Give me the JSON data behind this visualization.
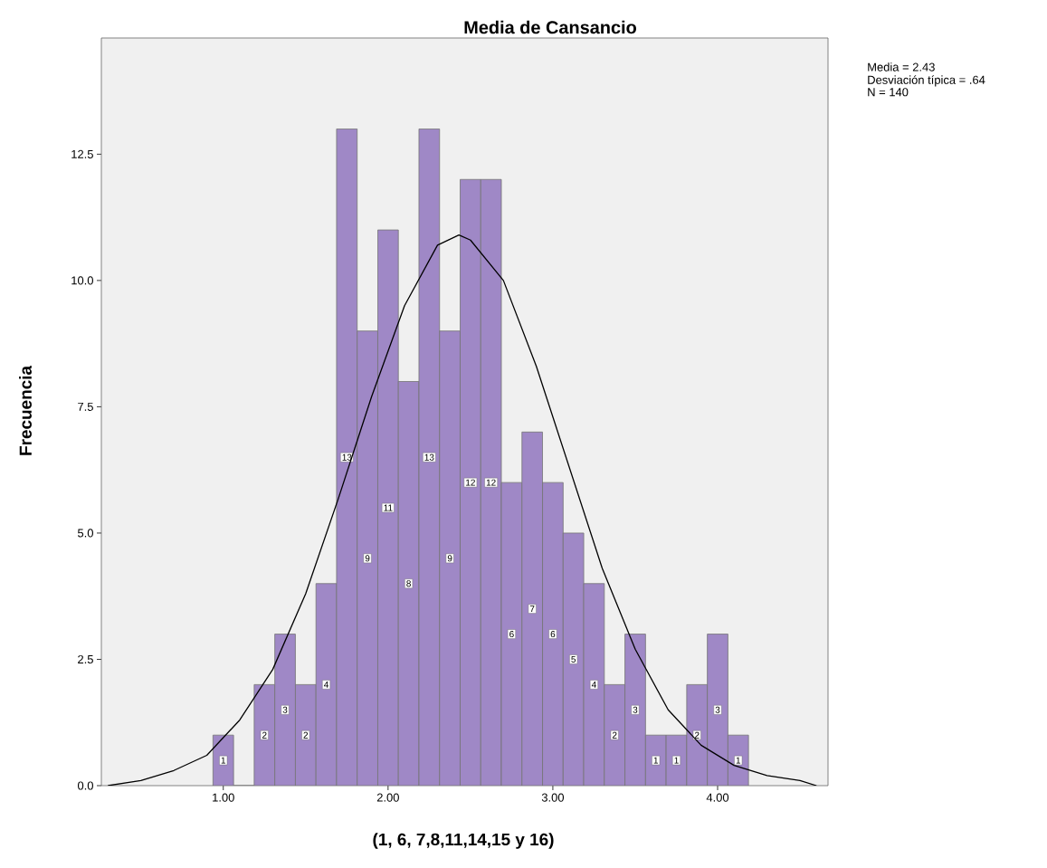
{
  "chart_data": {
    "type": "histogram",
    "title": "Media de Cansancio",
    "xlabel": "(1, 6, 7,8,11,14,15 y 16)",
    "ylabel": "Frecuencia",
    "annotations": [
      "Media = 2.43",
      "Desviación típica = .64",
      "N = 140"
    ],
    "series": [
      {
        "color": "#9f88c6",
        "bins": [
          0.9375,
          1.0625,
          1.1875,
          1.3125,
          1.4375,
          1.5625,
          1.6875,
          1.8125,
          1.9375,
          2.0625,
          2.1875,
          2.3125,
          2.4375,
          2.5625,
          2.6875,
          2.8125,
          2.9375,
          3.0625,
          3.1875,
          3.3125,
          3.4375,
          3.5625,
          3.6875,
          3.8125,
          3.9375,
          4.0625,
          4.1875
        ],
        "values": [
          1,
          0,
          2,
          3,
          2,
          4,
          13,
          9,
          11,
          8,
          13,
          9,
          12,
          12,
          6,
          7,
          6,
          5,
          4,
          2,
          3,
          1,
          1,
          2,
          3,
          1
        ],
        "value_labels": [
          "1",
          null,
          "2",
          "3",
          "2",
          "4",
          "13",
          "9",
          "11",
          "8",
          "13",
          "9",
          "12",
          "12",
          "6",
          "7",
          "6",
          "5",
          "4",
          "2",
          "3",
          "1",
          "1",
          "2",
          "3",
          "1"
        ]
      },
      {
        "type": "line",
        "color": "#000000",
        "x": [
          0.3,
          0.5,
          0.7,
          0.9,
          1.1,
          1.3,
          1.5,
          1.7,
          1.9,
          2.1,
          2.3,
          2.43,
          2.5,
          2.7,
          2.9,
          3.1,
          3.3,
          3.5,
          3.7,
          3.9,
          4.1,
          4.3,
          4.5,
          4.6
        ],
        "values": [
          0.0,
          0.1,
          0.3,
          0.6,
          1.3,
          2.3,
          3.8,
          5.7,
          7.7,
          9.5,
          10.7,
          10.9,
          10.8,
          10.0,
          8.3,
          6.3,
          4.3,
          2.7,
          1.5,
          0.8,
          0.4,
          0.2,
          0.1,
          0.0
        ]
      }
    ],
    "xlim": [
      0.26,
      4.67
    ],
    "ylim": [
      0,
      14.8
    ],
    "xticks": [
      {
        "value": 1,
        "label": "1.00"
      },
      {
        "value": 2,
        "label": "2.00"
      },
      {
        "value": 3,
        "label": "3.00"
      },
      {
        "value": 4,
        "label": "4.00"
      }
    ],
    "yticks": [
      {
        "value": 0,
        "label": "0.0"
      },
      {
        "value": 2.5,
        "label": "2.5"
      },
      {
        "value": 5,
        "label": "5.0"
      },
      {
        "value": 7.5,
        "label": "7.5"
      },
      {
        "value": 10,
        "label": "10.0"
      },
      {
        "value": 12.5,
        "label": "12.5"
      }
    ]
  }
}
